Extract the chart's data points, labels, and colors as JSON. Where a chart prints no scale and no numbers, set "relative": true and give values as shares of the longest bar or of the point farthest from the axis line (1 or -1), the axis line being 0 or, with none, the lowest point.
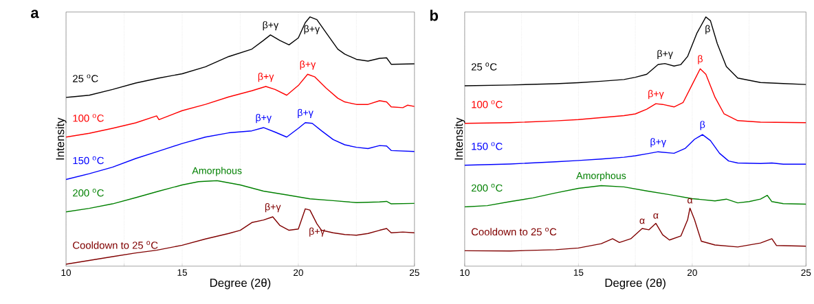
{
  "chart_data": [
    {
      "type": "line",
      "title": "a",
      "xlabel": "Degree (2θ)",
      "ylabel": "Intensity",
      "relative": true,
      "xlim": [
        10,
        25
      ],
      "xticks": [
        10,
        {
          "value": 12.5,
          "label": null
        },
        15,
        {
          "value": 17.5,
          "label": null
        },
        20,
        {
          "value": 22.5,
          "label": null
        },
        25
      ],
      "grid": "x",
      "series": [
        {
          "name": "25 $^{o}$C",
          "color": "#000000",
          "x": [
            10,
            11,
            12,
            13,
            14,
            15,
            16,
            17,
            18,
            18.5,
            18.8,
            19.2,
            19.6,
            20,
            20.3,
            20.5,
            20.8,
            21.2,
            21.7,
            22,
            22.5,
            23,
            23.5,
            23.8,
            24,
            25
          ],
          "values": [
            0.677,
            0.686,
            0.709,
            0.735,
            0.755,
            0.772,
            0.8,
            0.841,
            0.871,
            0.906,
            0.928,
            0.906,
            0.888,
            0.916,
            0.977,
            1.0,
            0.989,
            0.936,
            0.871,
            0.851,
            0.83,
            0.823,
            0.834,
            0.836,
            0.81,
            0.812
          ]
        },
        {
          "name": "100 $^{o}$C",
          "color": "#ff0000",
          "x": [
            10,
            11,
            12,
            13,
            13.9,
            14.0,
            15,
            16,
            17,
            18,
            18.6,
            19,
            19.5,
            20,
            20.4,
            20.7,
            21.2,
            21.7,
            22,
            22.5,
            23,
            23.5,
            23.8,
            24,
            24.5,
            24.7,
            25
          ],
          "values": [
            0.518,
            0.533,
            0.553,
            0.575,
            0.603,
            0.588,
            0.624,
            0.649,
            0.679,
            0.704,
            0.721,
            0.709,
            0.686,
            0.725,
            0.77,
            0.76,
            0.714,
            0.674,
            0.659,
            0.649,
            0.649,
            0.664,
            0.659,
            0.639,
            0.636,
            0.646,
            0.641
          ]
        },
        {
          "name": "150 $^{o}$C",
          "color": "#0000ff",
          "x": [
            10,
            11,
            12,
            13,
            14,
            15,
            16,
            17,
            18,
            18.5,
            19,
            19.5,
            20,
            20.3,
            20.6,
            21,
            21.5,
            22,
            22.5,
            23,
            23.5,
            23.8,
            24,
            25
          ],
          "values": [
            0.348,
            0.371,
            0.397,
            0.432,
            0.462,
            0.492,
            0.518,
            0.535,
            0.543,
            0.556,
            0.538,
            0.518,
            0.553,
            0.576,
            0.573,
            0.543,
            0.508,
            0.487,
            0.477,
            0.472,
            0.484,
            0.482,
            0.464,
            0.46
          ]
        },
        {
          "name": "200 $^{o}$C",
          "color": "#008000",
          "x": [
            10,
            11,
            12,
            13,
            14,
            15,
            15.7,
            16.5,
            17.5,
            18.5,
            19.5,
            20.5,
            21.5,
            22.5,
            23.5,
            23.8,
            24,
            25
          ],
          "values": [
            0.218,
            0.232,
            0.25,
            0.275,
            0.301,
            0.326,
            0.339,
            0.343,
            0.326,
            0.301,
            0.286,
            0.27,
            0.263,
            0.255,
            0.258,
            0.26,
            0.25,
            0.252
          ]
        },
        {
          "name": "Cooldown to 25 $^{o}$C",
          "color": "#800000",
          "x": [
            10,
            11,
            12,
            13,
            13.9,
            15,
            16,
            17,
            17.5,
            18,
            18.5,
            18.9,
            19.2,
            19.6,
            20,
            20.3,
            20.5,
            20.8,
            21,
            21.5,
            22,
            22.5,
            23,
            23.5,
            23.8,
            24,
            24.5,
            25
          ],
          "values": [
            0.008,
            0.023,
            0.038,
            0.053,
            0.064,
            0.084,
            0.109,
            0.131,
            0.144,
            0.175,
            0.185,
            0.198,
            0.164,
            0.144,
            0.149,
            0.23,
            0.225,
            0.17,
            0.144,
            0.134,
            0.127,
            0.124,
            0.131,
            0.144,
            0.151,
            0.134,
            0.137,
            0.134
          ]
        }
      ],
      "annotations": [
        {
          "text": "β+γ",
          "x": 18.8,
          "y": 0.928
        },
        {
          "text": "β+γ",
          "x": 20.5,
          "y": 1.0
        },
        {
          "text": "β+γ",
          "x": 18.6,
          "y": 0.721
        },
        {
          "text": "β+γ",
          "x": 20.4,
          "y": 0.77
        },
        {
          "text": "β+γ",
          "x": 18.5,
          "y": 0.556
        },
        {
          "text": "β+γ",
          "x": 20.3,
          "y": 0.576
        },
        {
          "text": "Amorphous",
          "x": 16.5,
          "y": 0.343
        },
        {
          "text": "β+γ",
          "x": 18.9,
          "y": 0.198
        },
        {
          "text": "β+γ",
          "x": 20.8,
          "y": 0.17
        }
      ]
    },
    {
      "type": "line",
      "title": "b",
      "xlabel": "Degree (2θ)",
      "ylabel": "Intensity",
      "relative": true,
      "xlim": [
        10,
        25
      ],
      "xticks": [
        10,
        {
          "value": 12.5,
          "label": null
        },
        15,
        {
          "value": 17.5,
          "label": null
        },
        20,
        {
          "value": 22.5,
          "label": null
        },
        25
      ],
      "grid": "x",
      "series": [
        {
          "name": "25 $^{o}$C",
          "color": "#000000",
          "x": [
            10,
            12,
            14,
            15,
            16,
            17,
            17.5,
            18,
            18.5,
            18.8,
            19.2,
            19.5,
            19.8,
            20.2,
            20.6,
            20.8,
            21.1,
            21.5,
            22,
            23,
            24,
            25
          ],
          "values": [
            0.724,
            0.727,
            0.732,
            0.736,
            0.742,
            0.749,
            0.758,
            0.77,
            0.809,
            0.813,
            0.803,
            0.809,
            0.842,
            0.934,
            1.0,
            0.985,
            0.893,
            0.801,
            0.755,
            0.737,
            0.733,
            0.729
          ]
        },
        {
          "name": "100 $^{o}$C",
          "color": "#ff0000",
          "x": [
            10,
            12,
            14,
            15,
            16,
            17,
            17.5,
            18,
            18.4,
            18.7,
            19.2,
            19.6,
            20,
            20.35,
            20.6,
            21,
            21.4,
            22,
            23,
            24,
            25
          ],
          "values": [
            0.573,
            0.576,
            0.583,
            0.588,
            0.596,
            0.604,
            0.611,
            0.63,
            0.652,
            0.649,
            0.639,
            0.657,
            0.729,
            0.792,
            0.77,
            0.678,
            0.611,
            0.584,
            0.578,
            0.577,
            0.576
          ]
        },
        {
          "name": "150 $^{o}$C",
          "color": "#0000ff",
          "x": [
            10,
            12,
            14,
            15,
            16,
            17,
            17.5,
            18,
            18.5,
            19.2,
            19.7,
            20.1,
            20.45,
            20.8,
            21.2,
            21.6,
            22,
            23,
            23.5,
            24,
            25
          ],
          "values": [
            0.405,
            0.41,
            0.419,
            0.424,
            0.43,
            0.437,
            0.443,
            0.451,
            0.459,
            0.453,
            0.473,
            0.509,
            0.528,
            0.504,
            0.453,
            0.422,
            0.414,
            0.412,
            0.414,
            0.409,
            0.409
          ]
        },
        {
          "name": "200 $^{o}$C",
          "color": "#008000",
          "x": [
            10,
            11,
            12,
            13,
            14,
            15,
            16,
            17,
            18,
            19,
            20,
            21,
            21.5,
            22,
            22.5,
            23,
            23.3,
            23.5,
            24,
            25
          ],
          "values": [
            0.238,
            0.243,
            0.259,
            0.274,
            0.294,
            0.312,
            0.323,
            0.318,
            0.302,
            0.287,
            0.271,
            0.262,
            0.269,
            0.254,
            0.259,
            0.269,
            0.284,
            0.259,
            0.251,
            0.249
          ]
        },
        {
          "name": "Cooldown to 25 $^{o}$C",
          "color": "#800000",
          "x": [
            10,
            12,
            14,
            15,
            16,
            16.5,
            16.8,
            17.3,
            17.8,
            18.1,
            18.4,
            18.7,
            19,
            19.5,
            19.8,
            19.9,
            20.1,
            20.4,
            21,
            22,
            23,
            23.5,
            23.7,
            25
          ],
          "values": [
            0.062,
            0.061,
            0.066,
            0.073,
            0.09,
            0.11,
            0.095,
            0.11,
            0.151,
            0.146,
            0.172,
            0.126,
            0.105,
            0.121,
            0.187,
            0.233,
            0.187,
            0.1,
            0.085,
            0.077,
            0.093,
            0.11,
            0.083,
            0.08
          ]
        }
      ],
      "annotations": [
        {
          "text": "β+γ",
          "x": 18.8,
          "y": 0.813
        },
        {
          "text": "β",
          "x": 20.6,
          "y": 1.0
        },
        {
          "text": "β+γ",
          "x": 18.4,
          "y": 0.652
        },
        {
          "text": "β",
          "x": 20.35,
          "y": 0.792
        },
        {
          "text": "β+γ",
          "x": 18.5,
          "y": 0.459
        },
        {
          "text": "β",
          "x": 20.45,
          "y": 0.528
        },
        {
          "text": "Amorphous",
          "x": 16,
          "y": 0.323
        },
        {
          "text": "α",
          "x": 17.8,
          "y": 0.151
        },
        {
          "text": "α",
          "x": 18.4,
          "y": 0.172
        },
        {
          "text": "α",
          "x": 19.9,
          "y": 0.233
        }
      ]
    }
  ]
}
